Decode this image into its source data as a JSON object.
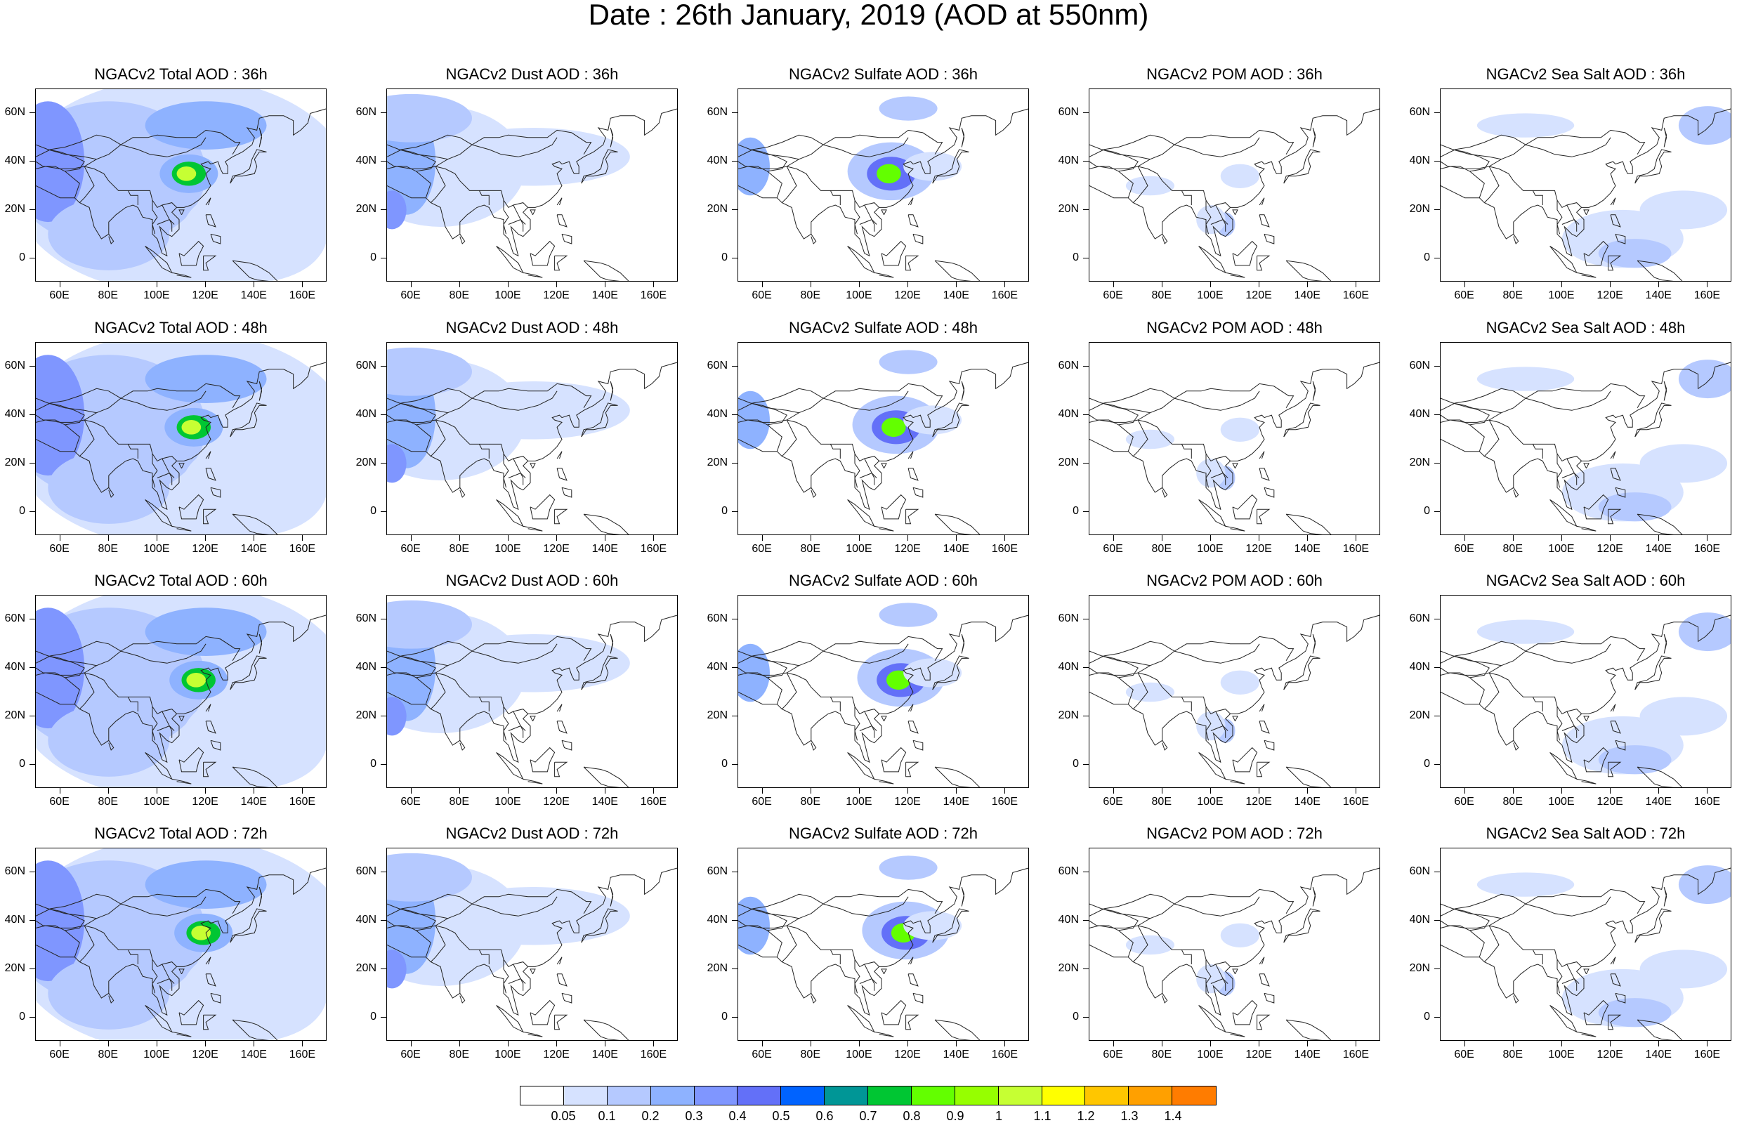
{
  "title": "Date : 26th January, 2019 (AOD at 550nm)",
  "panel_titles": [
    [
      "NGACv2 Total AOD : 36h",
      "NGACv2 Dust AOD : 36h",
      "NGACv2 Sulfate AOD : 36h",
      "NGACv2 POM AOD : 36h",
      "NGACv2 Sea Salt AOD : 36h"
    ],
    [
      "NGACv2 Total AOD : 48h",
      "NGACv2 Dust AOD : 48h",
      "NGACv2 Sulfate AOD : 48h",
      "NGACv2 POM AOD : 48h",
      "NGACv2 Sea Salt AOD : 48h"
    ],
    [
      "NGACv2 Total AOD : 60h",
      "NGACv2 Dust AOD : 60h",
      "NGACv2 Sulfate AOD : 60h",
      "NGACv2 POM AOD : 60h",
      "NGACv2 Sea Salt AOD : 60h"
    ],
    [
      "NGACv2 Total AOD : 72h",
      "NGACv2 Dust AOD : 72h",
      "NGACv2 Sulfate AOD : 72h",
      "NGACv2 POM AOD : 72h",
      "NGACv2 Sea Salt  AOD : 72h"
    ]
  ],
  "lat_labels": [
    "60N",
    "40N",
    "20N",
    "0"
  ],
  "lon_labels": [
    "60E",
    "80E",
    "100E",
    "120E",
    "140E",
    "160E"
  ],
  "colorbar": {
    "labels": [
      "0.05",
      "0.1",
      "0.2",
      "0.3",
      "0.4",
      "0.5",
      "0.6",
      "0.7",
      "0.8",
      "0.9",
      "1",
      "1.1",
      "1.2",
      "1.3",
      "1.4"
    ],
    "colors": [
      "#ffffff",
      "#d6e2ff",
      "#b5c9ff",
      "#8eb2ff",
      "#7f96ff",
      "#6370f8",
      "#0063ff",
      "#009696",
      "#00c633",
      "#63ff00",
      "#96ff00",
      "#c6ff33",
      "#ffff00",
      "#ffc600",
      "#ffa000",
      "#ff7c00",
      "#ff1900"
    ]
  },
  "fields": {
    "total": "#b5c9ff",
    "dust": "#8eb2ff",
    "sulfate": "#7f96ff",
    "pom": "#d6e2ff",
    "seasalt": "#b5c9ff"
  }
}
